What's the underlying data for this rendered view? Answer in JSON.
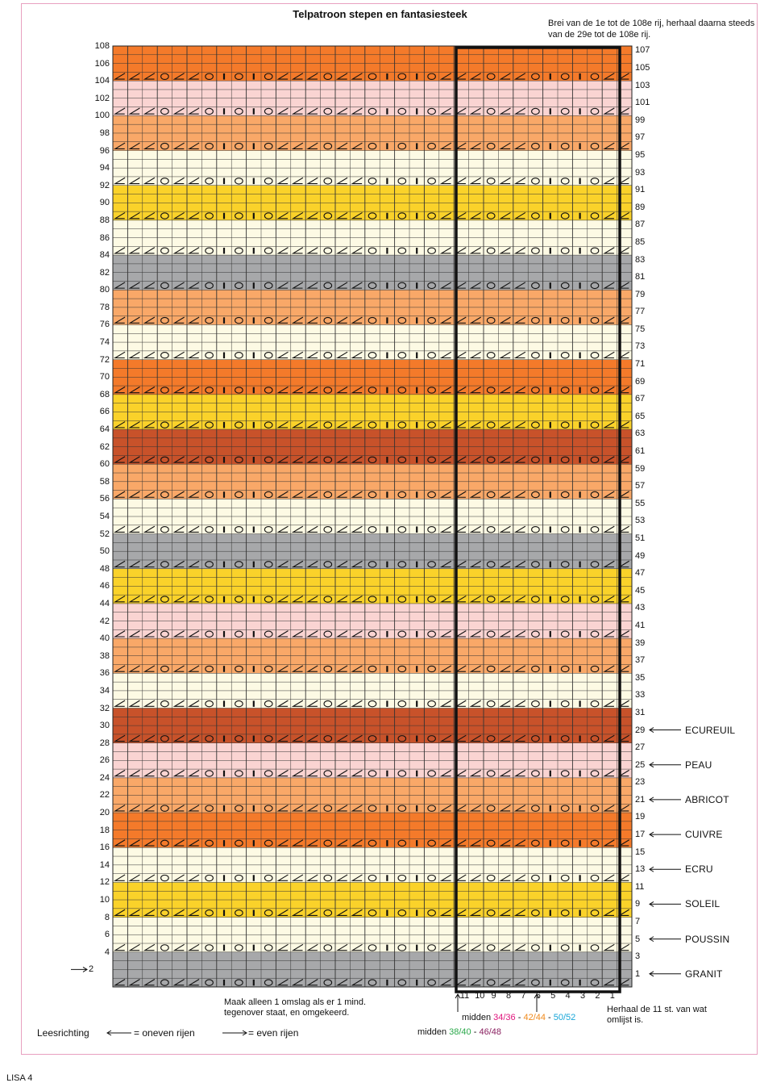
{
  "title": "Telpatroon stepen en fantasiesteek",
  "instruction": "Brei van de 1e tot de 108e rij, herhaal daarna steeds van de 29e tot de 108e rij.",
  "colors": {
    "ORANGE": "#f47a2a",
    "PINK": "#fad4d2",
    "APRICOT": "#f9a868",
    "CREAM": "#fdfae4",
    "YELLOW": "#fad22a",
    "GRAY": "#a7a8aa",
    "RUST": "#c8522a"
  },
  "stripes": [
    {
      "from": 1,
      "to": 4,
      "color": "GRAY"
    },
    {
      "from": 5,
      "to": 8,
      "color": "CREAM"
    },
    {
      "from": 9,
      "to": 12,
      "color": "YELLOW"
    },
    {
      "from": 13,
      "to": 16,
      "color": "CREAM"
    },
    {
      "from": 17,
      "to": 20,
      "color": "ORANGE"
    },
    {
      "from": 21,
      "to": 24,
      "color": "APRICOT"
    },
    {
      "from": 25,
      "to": 28,
      "color": "PINK"
    },
    {
      "from": 29,
      "to": 32,
      "color": "RUST"
    },
    {
      "from": 33,
      "to": 36,
      "color": "CREAM"
    },
    {
      "from": 37,
      "to": 40,
      "color": "APRICOT"
    },
    {
      "from": 41,
      "to": 44,
      "color": "PINK"
    },
    {
      "from": 45,
      "to": 48,
      "color": "YELLOW"
    },
    {
      "from": 49,
      "to": 52,
      "color": "GRAY"
    },
    {
      "from": 53,
      "to": 56,
      "color": "CREAM"
    },
    {
      "from": 57,
      "to": 60,
      "color": "APRICOT"
    },
    {
      "from": 61,
      "to": 64,
      "color": "RUST"
    },
    {
      "from": 65,
      "to": 68,
      "color": "YELLOW"
    },
    {
      "from": 69,
      "to": 72,
      "color": "ORANGE"
    },
    {
      "from": 73,
      "to": 76,
      "color": "CREAM"
    },
    {
      "from": 77,
      "to": 80,
      "color": "APRICOT"
    },
    {
      "from": 81,
      "to": 84,
      "color": "GRAY"
    },
    {
      "from": 85,
      "to": 88,
      "color": "CREAM"
    },
    {
      "from": 89,
      "to": 92,
      "color": "YELLOW"
    },
    {
      "from": 93,
      "to": 96,
      "color": "CREAM"
    },
    {
      "from": 97,
      "to": 100,
      "color": "APRICOT"
    },
    {
      "from": 101,
      "to": 104,
      "color": "PINK"
    },
    {
      "from": 105,
      "to": 108,
      "color": "ORANGE"
    }
  ],
  "rows": 108,
  "stitches": 35,
  "symbol_rows": [
    1,
    5,
    9,
    13,
    17,
    21,
    25,
    29,
    33,
    37,
    41,
    45,
    49,
    53,
    57,
    61,
    65,
    69,
    73,
    77,
    81,
    85,
    89,
    93,
    97,
    101,
    105
  ],
  "stitch_pattern_from_right": [
    "slash",
    "slash",
    "circle",
    "bar",
    "circle",
    "bar",
    "circle",
    "slash",
    "slash",
    "circle",
    "slash"
  ],
  "color_labels": [
    {
      "row": 29,
      "name": "ECUREUIL"
    },
    {
      "row": 25,
      "name": "PEAU"
    },
    {
      "row": 21,
      "name": "ABRICOT"
    },
    {
      "row": 17,
      "name": "CUIVRE"
    },
    {
      "row": 13,
      "name": "ECRU"
    },
    {
      "row": 9,
      "name": "SOLEIL"
    },
    {
      "row": 5,
      "name": "POUSSIN"
    },
    {
      "row": 1,
      "name": "GRANIT"
    }
  ],
  "repeat_numbers": [
    "11",
    "10",
    "9",
    "8",
    "7",
    "6",
    "5",
    "4",
    "3",
    "2",
    "1"
  ],
  "repeat_note": "Herhaal de 11 st. van wat omlijst is.",
  "yarn_over_note": "Maak alleen 1 omslag als er 1 mind. tegenover staat, en omgekeerd.",
  "middle_1": {
    "prefix": "midden ",
    "sizes": [
      "34/36",
      "42/44",
      "50/52"
    ],
    "colors": [
      "#e0147c",
      "#f08a1c",
      "#18a6d8"
    ]
  },
  "middle_2": {
    "prefix": "midden ",
    "sizes": [
      "38/40",
      "46/48"
    ],
    "colors": [
      "#2aa84a",
      "#8a2060"
    ]
  },
  "reading_label": "Leesrichting",
  "odd_rows_label": "= oneven rijen",
  "even_rows_label": "= even rijen",
  "row2_label": "2",
  "footer": "LISA 4"
}
